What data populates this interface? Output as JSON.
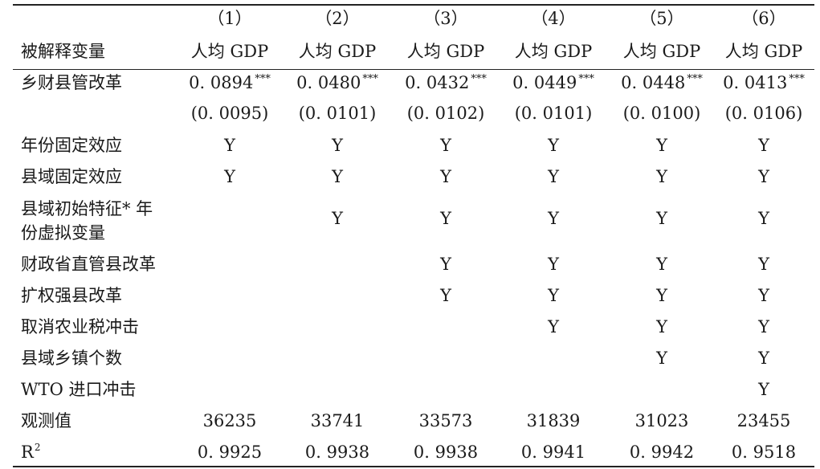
{
  "header": {
    "columns": [
      "（1）",
      "（2）",
      "（3）",
      "（4）",
      "（5）",
      "（6）"
    ],
    "dependent_label": "被解释变量",
    "dependent_values": [
      "人均 GDP",
      "人均 GDP",
      "人均 GDP",
      "人均 GDP",
      "人均 GDP",
      "人均 GDP"
    ]
  },
  "coef_row": {
    "label": "乡财县管改革",
    "values": [
      "0. 0894",
      "0. 0480",
      "0. 0432",
      "0. 0449",
      "0. 0448",
      "0. 0413"
    ],
    "stars": [
      "***",
      "***",
      "***",
      "***",
      "***",
      "***"
    ],
    "se": [
      "(0. 0095)",
      "(0. 0101)",
      "(0. 0102)",
      "(0. 0101)",
      "(0. 0100)",
      "(0. 0106)"
    ]
  },
  "controls": [
    {
      "label": "年份固定效应",
      "marks": [
        "Y",
        "Y",
        "Y",
        "Y",
        "Y",
        "Y"
      ]
    },
    {
      "label": "县域固定效应",
      "marks": [
        "Y",
        "Y",
        "Y",
        "Y",
        "Y",
        "Y"
      ]
    },
    {
      "label_line1": "县域初始特征* 年",
      "label_line2": "份虚拟变量",
      "marks": [
        "",
        "Y",
        "Y",
        "Y",
        "Y",
        "Y"
      ]
    },
    {
      "label": "财政省直管县改革",
      "marks": [
        "",
        "",
        "Y",
        "Y",
        "Y",
        "Y"
      ]
    },
    {
      "label": "扩权强县改革",
      "marks": [
        "",
        "",
        "Y",
        "Y",
        "Y",
        "Y"
      ]
    },
    {
      "label": "取消农业税冲击",
      "marks": [
        "",
        "",
        "",
        "Y",
        "Y",
        "Y"
      ]
    },
    {
      "label": "县域乡镇个数",
      "marks": [
        "",
        "",
        "",
        "",
        "Y",
        "Y"
      ]
    },
    {
      "label": "WTO 进口冲击",
      "marks": [
        "",
        "",
        "",
        "",
        "",
        "Y"
      ]
    }
  ],
  "obs_row": {
    "label": "观测值",
    "values": [
      "36235",
      "33741",
      "33573",
      "31839",
      "31023",
      "23455"
    ]
  },
  "r2_row": {
    "label": "R",
    "label_sup": "2",
    "values": [
      "0. 9925",
      "0. 9938",
      "0. 9938",
      "0. 9941",
      "0. 9942",
      "0. 9518"
    ]
  }
}
